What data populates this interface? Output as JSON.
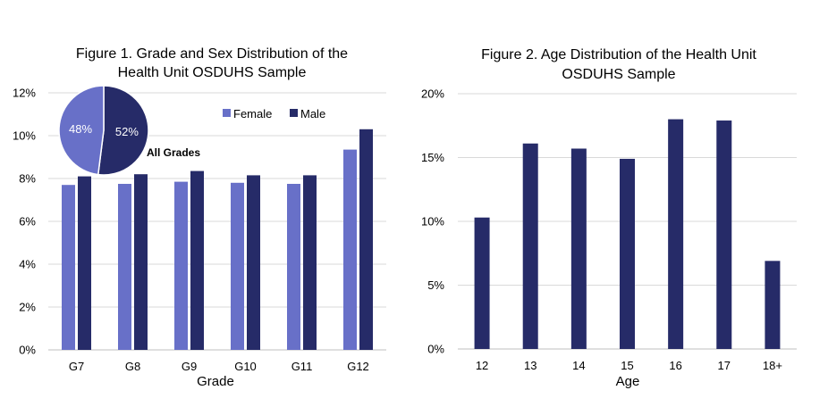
{
  "chart_data": [
    {
      "type": "bar",
      "title_lines": [
        "Figure 1. Grade and Sex Distribution of the",
        "Health Unit OSDUHS Sample"
      ],
      "xlabel": "Grade",
      "ylabel": "",
      "categories": [
        "G7",
        "G8",
        "G9",
        "G10",
        "G11",
        "G12"
      ],
      "series": [
        {
          "name": "Female",
          "color": "#6870c8",
          "values": [
            7.7,
            7.75,
            7.85,
            7.8,
            7.75,
            9.35
          ]
        },
        {
          "name": "Male",
          "color": "#262b68",
          "values": [
            8.1,
            8.2,
            8.35,
            8.15,
            8.15,
            10.3
          ]
        }
      ],
      "ylim": [
        0,
        12
      ],
      "yticks": [
        0,
        2,
        4,
        6,
        8,
        10,
        12
      ],
      "ytick_labels": [
        "0%",
        "2%",
        "4%",
        "6%",
        "8%",
        "10%",
        "12%"
      ],
      "grid": true,
      "legend": "top-right",
      "inset": {
        "type": "pie",
        "label": "All Grades",
        "slices": [
          {
            "name": "Female",
            "value": 48,
            "label": "48%",
            "color": "#6870c8"
          },
          {
            "name": "Male",
            "value": 52,
            "label": "52%",
            "color": "#262b68"
          }
        ]
      }
    },
    {
      "type": "bar",
      "title_lines": [
        "Figure 2. Age Distribution of the Health Unit",
        "OSDUHS Sample"
      ],
      "xlabel": "Age",
      "ylabel": "",
      "categories": [
        "12",
        "13",
        "14",
        "15",
        "16",
        "17",
        "18+"
      ],
      "series": [
        {
          "color": "#262b68",
          "values": [
            10.3,
            16.1,
            15.7,
            14.9,
            18.0,
            17.9,
            6.9
          ]
        }
      ],
      "ylim": [
        0,
        20
      ],
      "yticks": [
        0,
        5,
        10,
        15,
        20
      ],
      "ytick_labels": [
        "0%",
        "5%",
        "10%",
        "15%",
        "20%"
      ],
      "grid": true
    }
  ]
}
